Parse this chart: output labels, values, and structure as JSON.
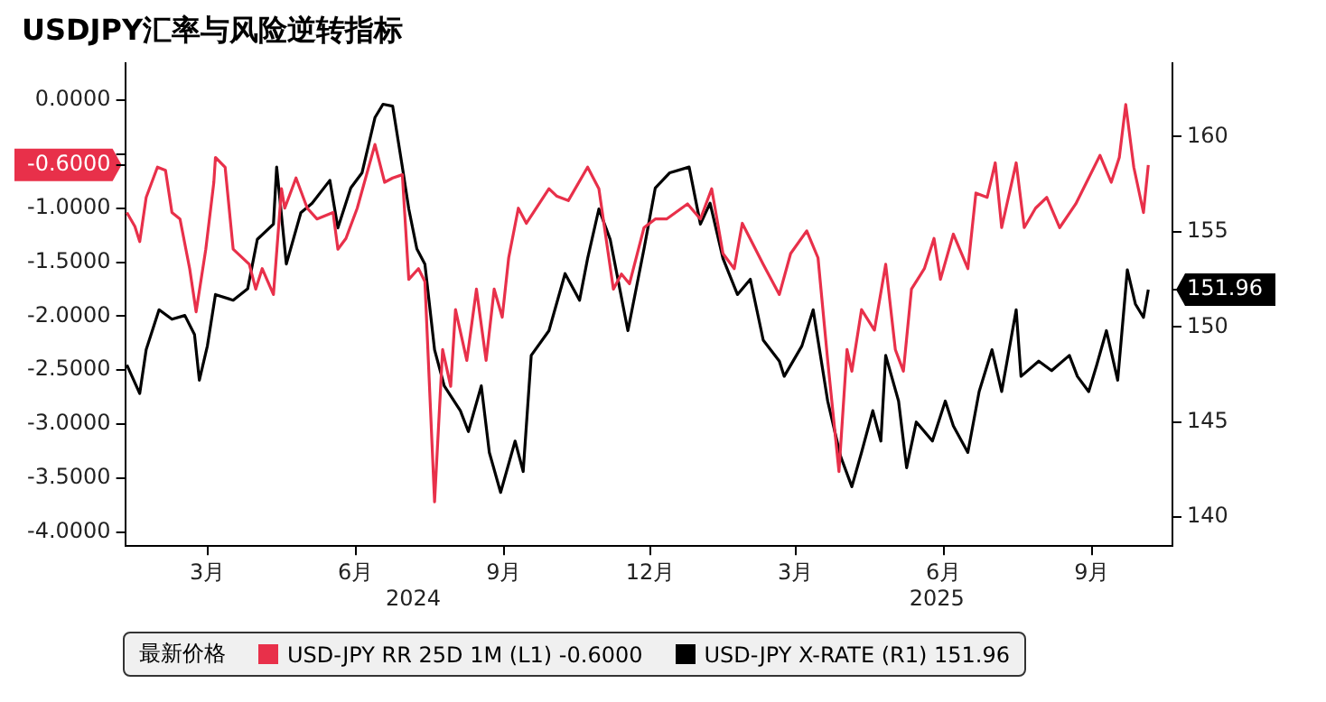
{
  "chart_data": {
    "type": "line",
    "title": "USDJPY汇率与风险逆转指标",
    "legend_title": "最新价格",
    "legend": "bottom",
    "grid": false,
    "xlim": [
      "2024-01-24",
      "2025-11-04"
    ],
    "xticks": [
      {
        "value": "2024-03-15",
        "label": "3月"
      },
      {
        "value": "2024-06-15",
        "label": "6月"
      },
      {
        "value": "2024-09-15",
        "label": "9月"
      },
      {
        "value": "2024-12-15",
        "label": "12月"
      },
      {
        "value": "2025-03-15",
        "label": "3月"
      },
      {
        "value": "2025-06-15",
        "label": "6月"
      },
      {
        "value": "2025-09-15",
        "label": "9月"
      }
    ],
    "annotations": [
      "2024",
      "2025"
    ],
    "ylim": [
      -4.13,
      0.34
    ],
    "yticks": [
      {
        "value": 0,
        "label": "0.0000"
      },
      {
        "value": -0.5,
        "label": null
      },
      {
        "value": -0.6,
        "label": "-0.6000"
      },
      {
        "value": -1,
        "label": "-1.0000"
      },
      {
        "value": -1.5,
        "label": "-1.5000"
      },
      {
        "value": -2,
        "label": "-2.0000"
      },
      {
        "value": -2.5,
        "label": "-2.5000"
      },
      {
        "value": -3,
        "label": "-3.0000"
      },
      {
        "value": -3.5,
        "label": "-3.5000"
      },
      {
        "value": -4,
        "label": "-4.0000"
      }
    ],
    "y2lim": [
      138.48,
      163.84
    ],
    "y2ticks": [
      140,
      145,
      150,
      155,
      160,
      151.96
    ],
    "series": [
      {
        "name": "USD-JPY RR 25D 1M (L1) -0.6000",
        "color": "#e8304a",
        "axis": "y",
        "x": [
          "2024-01-25",
          "2024-01-30",
          "2024-02-02",
          "2024-02-06",
          "2024-02-13",
          "2024-02-18",
          "2024-02-22",
          "2024-02-27",
          "2024-03-04",
          "2024-03-08",
          "2024-03-14",
          "2024-03-19",
          "2024-03-20",
          "2024-03-26",
          "2024-03-31",
          "2024-04-10",
          "2024-04-14",
          "2024-04-18",
          "2024-04-25",
          "2024-04-30",
          "2024-05-02",
          "2024-05-09",
          "2024-05-16",
          "2024-05-22",
          "2024-06-01",
          "2024-06-04",
          "2024-06-09",
          "2024-06-16",
          "2024-06-27",
          "2024-07-03",
          "2024-07-08",
          "2024-07-14",
          "2024-07-18",
          "2024-07-24",
          "2024-07-28",
          "2024-08-03",
          "2024-08-08",
          "2024-08-13",
          "2024-08-16",
          "2024-08-23",
          "2024-08-29",
          "2024-09-04",
          "2024-09-09",
          "2024-09-14",
          "2024-09-18",
          "2024-09-24",
          "2024-09-29",
          "2024-10-13",
          "2024-10-18",
          "2024-10-25",
          "2024-11-06",
          "2024-11-13",
          "2024-11-22",
          "2024-11-27",
          "2024-12-02",
          "2024-12-11",
          "2024-12-18",
          "2024-12-25",
          "2025-01-07",
          "2025-01-15",
          "2025-01-22",
          "2025-01-29",
          "2025-02-05",
          "2025-02-10",
          "2025-02-23",
          "2025-03-05",
          "2025-03-12",
          "2025-03-22",
          "2025-03-29",
          "2025-04-04",
          "2025-04-11",
          "2025-04-16",
          "2025-04-19",
          "2025-04-25",
          "2025-05-03",
          "2025-05-10",
          "2025-05-16",
          "2025-05-21",
          "2025-05-26",
          "2025-06-03",
          "2025-06-09",
          "2025-06-13",
          "2025-06-21",
          "2025-06-30",
          "2025-07-05",
          "2025-07-12",
          "2025-07-17",
          "2025-07-21",
          "2025-07-30",
          "2025-08-04",
          "2025-08-11",
          "2025-08-18",
          "2025-08-26",
          "2025-09-05",
          "2025-09-13",
          "2025-09-20",
          "2025-09-27",
          "2025-10-02",
          "2025-10-06",
          "2025-10-11",
          "2025-10-17",
          "2025-10-20"
        ],
        "values": [
          -1.04,
          -1.17,
          -1.31,
          -0.9,
          -0.62,
          -0.65,
          -1.04,
          -1.1,
          -1.56,
          -1.96,
          -1.38,
          -0.76,
          -0.53,
          -0.62,
          -1.38,
          -1.52,
          -1.75,
          -1.56,
          -1.8,
          -0.82,
          -1.0,
          -0.72,
          -1.0,
          -1.1,
          -1.04,
          -1.38,
          -1.28,
          -1.0,
          -0.41,
          -0.76,
          -0.72,
          -0.69,
          -1.66,
          -1.56,
          -1.68,
          -3.72,
          -2.31,
          -2.65,
          -1.94,
          -2.41,
          -1.75,
          -2.41,
          -1.75,
          -2.01,
          -1.46,
          -1.0,
          -1.14,
          -0.82,
          -0.89,
          -0.93,
          -0.62,
          -0.82,
          -1.75,
          -1.61,
          -1.7,
          -1.18,
          -1.1,
          -1.1,
          -0.96,
          -1.1,
          -0.82,
          -1.42,
          -1.56,
          -1.14,
          -1.52,
          -1.8,
          -1.42,
          -1.21,
          -1.46,
          -2.41,
          -3.44,
          -2.31,
          -2.51,
          -1.94,
          -2.13,
          -1.52,
          -2.31,
          -2.51,
          -1.75,
          -1.56,
          -1.28,
          -1.66,
          -1.24,
          -1.56,
          -0.86,
          -0.9,
          -0.58,
          -1.18,
          -0.58,
          -1.18,
          -1.0,
          -0.9,
          -1.18,
          -0.96,
          -0.72,
          -0.51,
          -0.76,
          -0.53,
          -0.04,
          -0.62,
          -1.04,
          -0.6
        ]
      },
      {
        "name": "USD-JPY X-RATE (R1) 151.96",
        "color": "#000000",
        "axis": "y2",
        "x": [
          "2024-01-25",
          "2024-02-02",
          "2024-02-06",
          "2024-02-14",
          "2024-02-22",
          "2024-03-01",
          "2024-03-07",
          "2024-03-10",
          "2024-03-15",
          "2024-03-20",
          "2024-03-31",
          "2024-04-09",
          "2024-04-15",
          "2024-04-25",
          "2024-04-27",
          "2024-05-03",
          "2024-05-12",
          "2024-05-19",
          "2024-05-30",
          "2024-06-04",
          "2024-06-12",
          "2024-06-19",
          "2024-06-27",
          "2024-07-02",
          "2024-07-08",
          "2024-07-14",
          "2024-07-18",
          "2024-07-23",
          "2024-07-28",
          "2024-08-03",
          "2024-08-09",
          "2024-08-19",
          "2024-08-24",
          "2024-09-01",
          "2024-09-06",
          "2024-09-13",
          "2024-09-22",
          "2024-09-27",
          "2024-10-02",
          "2024-10-13",
          "2024-10-23",
          "2024-11-01",
          "2024-11-06",
          "2024-11-13",
          "2024-11-20",
          "2024-12-01",
          "2024-12-11",
          "2024-12-18",
          "2024-12-27",
          "2025-01-08",
          "2025-01-15",
          "2025-01-21",
          "2025-01-29",
          "2025-02-07",
          "2025-02-15",
          "2025-02-23",
          "2025-03-05",
          "2025-03-08",
          "2025-03-19",
          "2025-03-26",
          "2025-04-01",
          "2025-04-04",
          "2025-04-12",
          "2025-04-19",
          "2025-04-25",
          "2025-05-02",
          "2025-05-07",
          "2025-05-10",
          "2025-05-18",
          "2025-05-23",
          "2025-05-29",
          "2025-06-08",
          "2025-06-16",
          "2025-06-21",
          "2025-06-30",
          "2025-07-07",
          "2025-07-15",
          "2025-07-21",
          "2025-07-30",
          "2025-08-02",
          "2025-08-13",
          "2025-08-21",
          "2025-09-01",
          "2025-09-06",
          "2025-09-13",
          "2025-09-18",
          "2025-09-24",
          "2025-10-01",
          "2025-10-07",
          "2025-10-12",
          "2025-10-17",
          "2025-10-20"
        ],
        "values": [
          148.0,
          146.5,
          148.8,
          150.9,
          150.4,
          150.6,
          149.6,
          147.2,
          149.0,
          151.7,
          151.4,
          152.0,
          154.6,
          155.4,
          158.4,
          153.3,
          156.0,
          156.5,
          157.7,
          155.2,
          157.3,
          158.1,
          161.0,
          161.7,
          161.6,
          158.4,
          156.2,
          154.1,
          153.3,
          148.8,
          146.9,
          145.6,
          144.5,
          146.9,
          143.4,
          141.3,
          144.0,
          142.4,
          148.5,
          149.8,
          152.8,
          151.4,
          153.6,
          156.2,
          154.6,
          149.8,
          154.1,
          157.3,
          158.1,
          158.4,
          155.4,
          156.5,
          153.6,
          151.7,
          152.5,
          149.3,
          148.2,
          147.4,
          149.0,
          150.9,
          147.7,
          146.1,
          143.2,
          141.6,
          143.4,
          145.6,
          144.0,
          148.5,
          146.1,
          142.6,
          145.0,
          144.0,
          146.1,
          144.8,
          143.4,
          146.6,
          148.8,
          146.6,
          150.9,
          147.4,
          148.2,
          147.7,
          148.5,
          147.4,
          146.6,
          148.0,
          149.8,
          147.2,
          153.0,
          151.2,
          150.5,
          151.96
        ]
      }
    ]
  }
}
